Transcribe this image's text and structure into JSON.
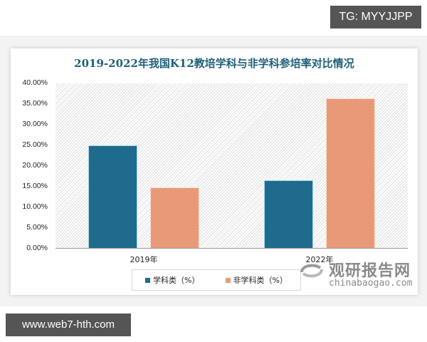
{
  "overlay": {
    "top_badge": "TG: MYYJJPP",
    "bottom_badge": "www.web7-hth.com"
  },
  "watermark": {
    "name_cn": "观研报告网",
    "domain": "chinabaogao.com"
  },
  "chart_data": {
    "type": "bar",
    "title": "2019-2022年我国K12教培学科与非学科参培率对比情况",
    "categories": [
      "2019年",
      "2022年"
    ],
    "series": [
      {
        "name": "学科类（%）",
        "color": "#1f6b8e",
        "values": [
          25.0,
          16.5
        ]
      },
      {
        "name": "非学科类（%）",
        "color": "#e89a78",
        "values": [
          14.8,
          36.4
        ]
      }
    ],
    "xlabel": "",
    "ylabel": "",
    "ylim": [
      0,
      40
    ],
    "yticks": [
      "0.00%",
      "5.00%",
      "10.00%",
      "15.00%",
      "20.00%",
      "25.00%",
      "30.00%",
      "35.00%",
      "40.00%"
    ],
    "grid": false,
    "legend_position": "bottom",
    "plot_background": "diagonal-hatch"
  }
}
